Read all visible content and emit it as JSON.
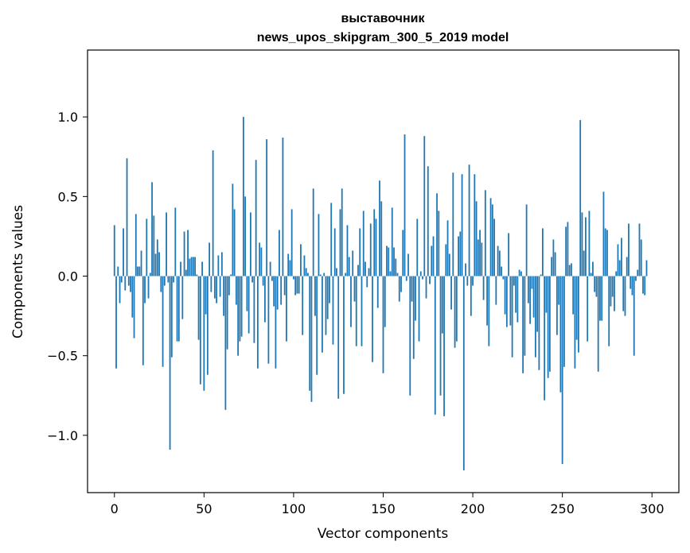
{
  "chart_data": {
    "type": "bar",
    "title_line1": "выставочник",
    "title_line2": "news_upos_skipgram_300_5_2019 model",
    "xlabel": "Vector components",
    "ylabel": "Components values",
    "xlim": [
      -15,
      315
    ],
    "ylim": [
      -1.36,
      1.42
    ],
    "xticks": [
      0,
      50,
      100,
      150,
      200,
      250,
      300
    ],
    "yticks": [
      -1.0,
      -0.5,
      0.0,
      0.5,
      1.0
    ],
    "xtick_labels": [
      "0",
      "50",
      "100",
      "150",
      "200",
      "250",
      "300"
    ],
    "ytick_labels": [
      "−1.0",
      "−0.5",
      "0.0",
      "0.5",
      "1.0"
    ],
    "bar_color": "#1f77b4",
    "values": [
      0.32,
      -0.58,
      0.06,
      -0.17,
      -0.04,
      0.3,
      -0.09,
      0.74,
      -0.06,
      -0.1,
      -0.26,
      -0.39,
      0.39,
      0.06,
      0.06,
      0.16,
      -0.56,
      -0.17,
      0.36,
      -0.14,
      0.02,
      0.59,
      0.38,
      0.14,
      0.23,
      0.15,
      -0.1,
      -0.57,
      -0.06,
      0.4,
      -0.04,
      -1.09,
      -0.51,
      -0.04,
      0.43,
      -0.41,
      -0.41,
      0.09,
      -0.27,
      0.28,
      0.04,
      0.29,
      0.11,
      0.12,
      0.12,
      0.12,
      0.01,
      -0.4,
      -0.68,
      0.09,
      -0.72,
      -0.24,
      -0.62,
      0.21,
      -0.1,
      0.79,
      -0.14,
      -0.17,
      0.13,
      -0.13,
      0.15,
      -0.25,
      -0.84,
      -0.46,
      -0.12,
      0.01,
      0.58,
      0.42,
      -0.18,
      -0.5,
      -0.41,
      -0.38,
      1.0,
      0.5,
      -0.22,
      -0.36,
      0.4,
      -0.04,
      -0.42,
      0.73,
      -0.58,
      0.21,
      0.18,
      -0.06,
      -0.29,
      0.86,
      -0.55,
      0.09,
      -0.03,
      -0.19,
      -0.58,
      -0.21,
      0.29,
      -0.18,
      0.87,
      -0.12,
      -0.41,
      0.14,
      0.1,
      0.42,
      -0.02,
      -0.12,
      -0.11,
      -0.11,
      0.2,
      -0.37,
      0.13,
      0.05,
      0.02,
      -0.72,
      -0.79,
      0.55,
      -0.25,
      -0.62,
      0.39,
      0.01,
      -0.48,
      0.02,
      -0.37,
      -0.27,
      -0.17,
      0.46,
      -0.43,
      0.3,
      0.05,
      -0.77,
      0.42,
      0.55,
      -0.74,
      0.02,
      0.32,
      0.12,
      -0.32,
      0.16,
      -0.16,
      -0.44,
      0.07,
      0.3,
      -0.44,
      0.41,
      0.09,
      -0.07,
      0.05,
      0.33,
      -0.54,
      0.42,
      0.36,
      -0.2,
      0.6,
      0.47,
      -0.61,
      -0.32,
      0.19,
      0.18,
      0.03,
      0.43,
      0.18,
      0.11,
      0.02,
      -0.16,
      -0.1,
      0.29,
      0.89,
      -0.03,
      0.14,
      -0.75,
      -0.16,
      -0.52,
      -0.28,
      0.36,
      -0.41,
      0.03,
      -0.02,
      0.88,
      -0.14,
      0.69,
      -0.05,
      0.19,
      0.25,
      -0.87,
      0.52,
      0.41,
      -0.75,
      -0.36,
      -0.88,
      0.2,
      0.35,
      0.14,
      -0.21,
      0.65,
      -0.45,
      -0.41,
      0.25,
      0.28,
      0.64,
      -1.22,
      0.08,
      -0.06,
      0.7,
      -0.25,
      -0.06,
      0.64,
      0.47,
      0.23,
      0.29,
      0.21,
      -0.15,
      0.54,
      -0.31,
      -0.44,
      0.49,
      0.45,
      0.36,
      -0.18,
      0.19,
      0.16,
      0.06,
      -0.02,
      -0.24,
      -0.32,
      0.27,
      -0.31,
      -0.51,
      -0.06,
      -0.23,
      -0.29,
      0.04,
      0.03,
      -0.61,
      -0.5,
      0.45,
      -0.17,
      -0.3,
      -0.08,
      -0.26,
      -0.51,
      -0.35,
      -0.59,
      0.01,
      0.3,
      -0.78,
      -0.23,
      -0.64,
      -0.6,
      0.12,
      0.23,
      0.15,
      -0.37,
      -0.18,
      -0.73,
      -1.18,
      -0.57,
      0.31,
      0.34,
      0.07,
      0.08,
      -0.24,
      -0.58,
      -0.4,
      -0.48,
      0.98,
      0.4,
      0.16,
      0.37,
      -0.41,
      0.41,
      0.02,
      0.09,
      -0.1,
      -0.13,
      -0.6,
      -0.28,
      -0.28,
      0.53,
      0.3,
      0.29,
      -0.44,
      -0.19,
      -0.13,
      -0.22,
      0.03,
      0.2,
      0.1,
      0.24,
      -0.22,
      -0.25,
      0.12,
      0.33,
      -0.08,
      -0.12,
      -0.5,
      -0.03,
      0.04,
      0.33,
      0.23,
      -0.11,
      -0.12,
      0.1
    ]
  }
}
